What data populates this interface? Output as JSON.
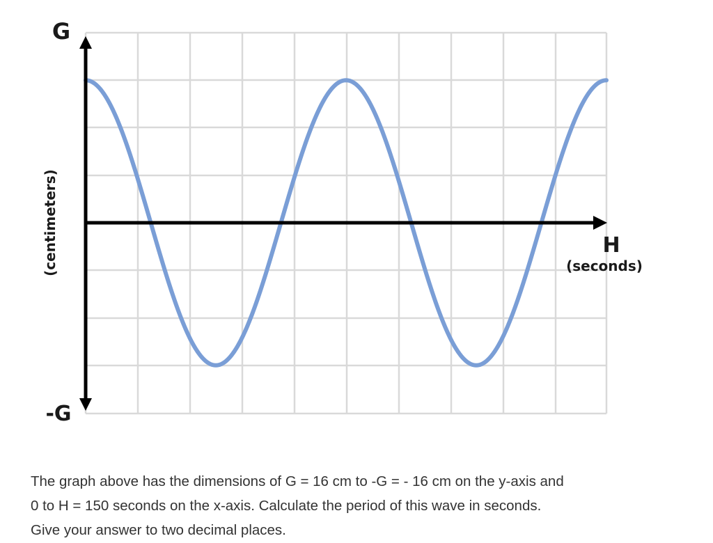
{
  "chart_data": {
    "type": "line",
    "title": "",
    "y_axis": {
      "top_label": "G",
      "bottom_label": "-G",
      "unit_label": "(centimeters)"
    },
    "x_axis": {
      "end_label": "H",
      "unit_label": "(seconds)"
    },
    "grid": true,
    "series": [
      {
        "function": "cosine",
        "amplitude_fraction": 0.75,
        "cycles": 2,
        "start_phase": "maximum"
      }
    ]
  },
  "colors": {
    "wave": "#7a9ed6",
    "grid": "#d9d9d9",
    "axis": "#000000"
  },
  "question": {
    "line1": "The graph above has the dimensions of G = 16 cm to -G = - 16 cm on the y-axis and",
    "line2": "0 to H = 150 seconds on the x-axis.  Calculate the period of this wave in seconds.",
    "line3": "Give your answer to two decimal places."
  }
}
